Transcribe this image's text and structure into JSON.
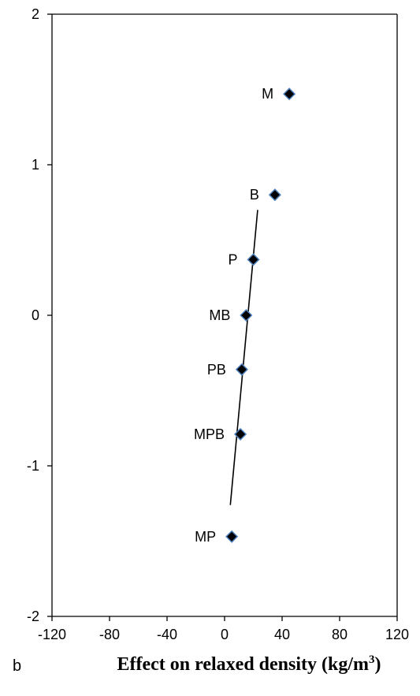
{
  "chart_data": {
    "type": "scatter",
    "xlabel": "Effect  on relaxed density (kg/m",
    "xlabel_sup": "3",
    "xlabel_tail": ")",
    "panel_label": "b",
    "xlim": [
      -120,
      120
    ],
    "ylim": [
      -2,
      2
    ],
    "xticks": [
      "-120",
      "-80",
      "-40",
      "0",
      "40",
      "80",
      "120"
    ],
    "yticks": [
      "-2",
      "-1",
      "0",
      "1",
      "2"
    ],
    "points": [
      {
        "label": "M",
        "x": 45,
        "y": 1.47
      },
      {
        "label": "B",
        "x": 35,
        "y": 0.8
      },
      {
        "label": "P",
        "x": 20,
        "y": 0.37
      },
      {
        "label": "MB",
        "x": 15,
        "y": 0.0
      },
      {
        "label": "PB",
        "x": 12,
        "y": -0.36
      },
      {
        "label": "MPB",
        "x": 11,
        "y": -0.79
      },
      {
        "label": "MP",
        "x": 5,
        "y": -1.47
      }
    ],
    "fit_line": {
      "x": [
        4,
        23
      ],
      "y": [
        -1.26,
        0.7
      ]
    },
    "marker_color": "#000000",
    "marker_edge_color": "#4f81bd",
    "grid": false
  }
}
